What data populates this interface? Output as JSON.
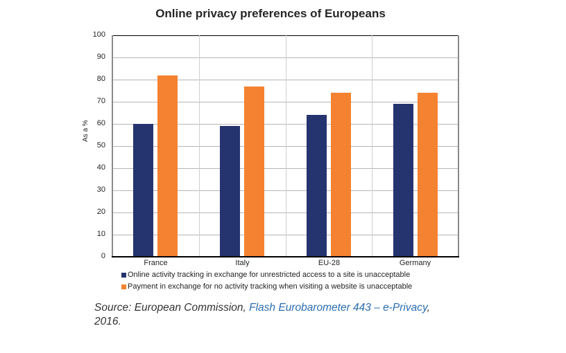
{
  "chart_data": {
    "type": "bar",
    "title": "Online privacy preferences of Europeans",
    "xlabel": "",
    "ylabel": "As a %",
    "ylim": [
      0,
      100
    ],
    "yticks": [
      0,
      10,
      20,
      30,
      40,
      50,
      60,
      70,
      80,
      90,
      100
    ],
    "categories": [
      "France",
      "Italy",
      "EU-28",
      "Germany"
    ],
    "series": [
      {
        "name": "Online activity tracking in exchange for unrestricted access to a site is unacceptable",
        "color": "#25336F",
        "values": [
          60,
          59,
          64,
          69
        ]
      },
      {
        "name": "Payment in exchange for no activity tracking when visiting a website is unacceptable",
        "color": "#F58230",
        "values": [
          82,
          77,
          74,
          74
        ]
      }
    ],
    "grid": true,
    "legend_position": "bottom"
  },
  "source": {
    "prefix": "Source: European Commission, ",
    "link_text": "Flash Eurobarometer 443 – e-Privacy",
    "suffix": ",",
    "year": "2016."
  }
}
